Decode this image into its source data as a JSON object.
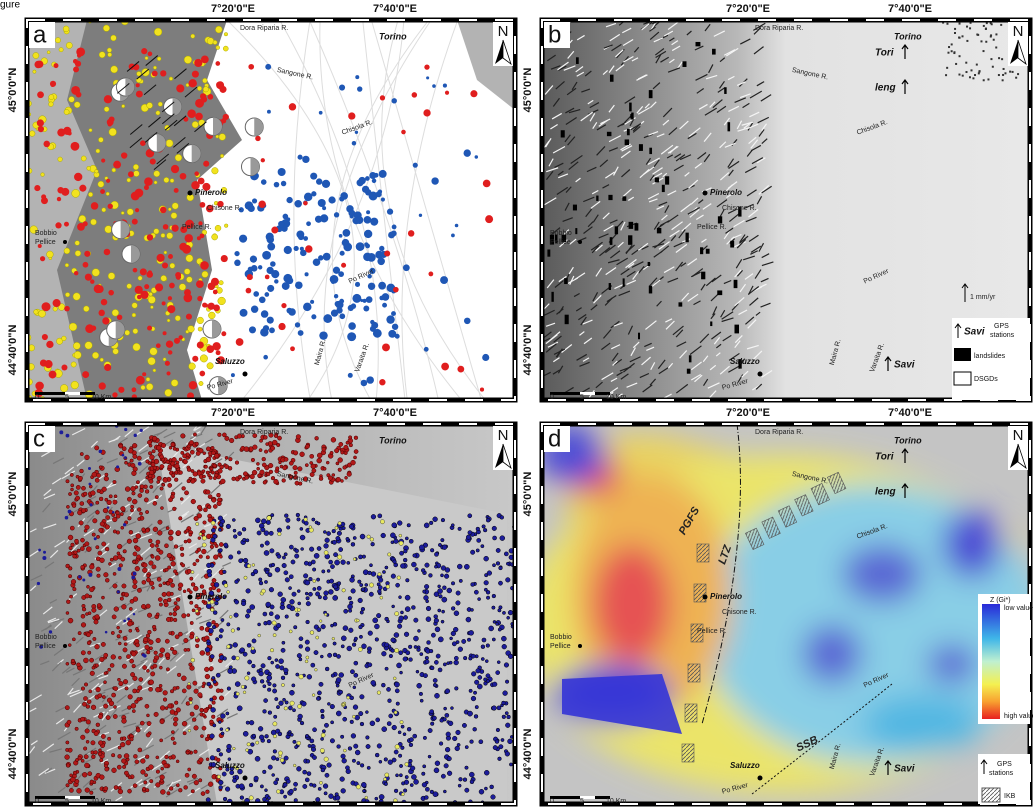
{
  "figure_label": "gure",
  "panels": [
    {
      "label": "a",
      "lon_labels": [
        "7°20'0\"E",
        "7°40'0\"E"
      ],
      "lat_labels": [
        "45°0'0\"N",
        "44°40'0\"N"
      ],
      "north": "N",
      "scale": [
        "0",
        "5",
        "10 Km"
      ],
      "places": [
        "Dora Riparia R.",
        "Torino",
        "Sangone R.",
        "Chisola R.",
        "Pinerolo",
        "Chisone R.",
        "Pellice R.",
        "Po River",
        "Bobbio",
        "Pellice",
        "Saluzzo",
        "Maira R.",
        "Varaita R.",
        "Po River"
      ],
      "legend": []
    },
    {
      "label": "b",
      "lon_labels": [
        "7°20'0\"E",
        "7°40'0\"E"
      ],
      "lat_labels": [
        "45°0'0\"N",
        "44°40'0\"N"
      ],
      "north": "N",
      "scale": [
        "0",
        "5",
        "10 Km"
      ],
      "places": [
        "Dora Riparia R.",
        "Torino",
        "Tori",
        "leng",
        "Sangone R.",
        "Chisola R.",
        "Pinerolo",
        "Chisone R.",
        "Pellice R.",
        "Po River",
        "Bobbio",
        "Pellice",
        "1 mm/yr",
        "Saluzzo",
        "Maira R.",
        "Varaita R.",
        "Savi",
        "Po River"
      ],
      "legend": [
        "Savi",
        "GPS",
        "stations",
        "landslides",
        "DSGDs"
      ]
    },
    {
      "label": "c",
      "lon_labels": [
        "7°20'0\"E",
        "7°40'0\"E"
      ],
      "lat_labels": [
        "45°0'0\"N",
        "44°40'0\"N"
      ],
      "north": "N",
      "scale": [
        "0",
        "5",
        "10 Km"
      ],
      "places": [
        "Dora Riparia R.",
        "Torino",
        "Sangone R.",
        "Pinerolo",
        "Bobbio",
        "Pellice",
        "Saluzzo",
        "Po River"
      ],
      "legend": []
    },
    {
      "label": "d",
      "lon_labels": [
        "7°20'0\"E",
        "7°40'0\"E"
      ],
      "lat_labels": [
        "45°0'0\"N",
        "44°40'0\"N"
      ],
      "north": "N",
      "scale": [
        "0",
        "5",
        "10 Km"
      ],
      "places": [
        "Dora Riparia R.",
        "Torino",
        "Tori",
        "leng",
        "Sangone R.",
        "Chisola R.",
        "PGFS",
        "LTZ",
        "Pinerolo",
        "Chisone R.",
        "Pellice R.",
        "Po River",
        "Bobbio",
        "Pellice",
        "SSB",
        "Saluzzo",
        "Maira R.",
        "Varaita R.",
        "Savi",
        "Po River"
      ],
      "legend": [
        "Z (Gi*)",
        "low values",
        "high values",
        "GPS",
        "stations",
        "IKB"
      ]
    }
  ]
}
